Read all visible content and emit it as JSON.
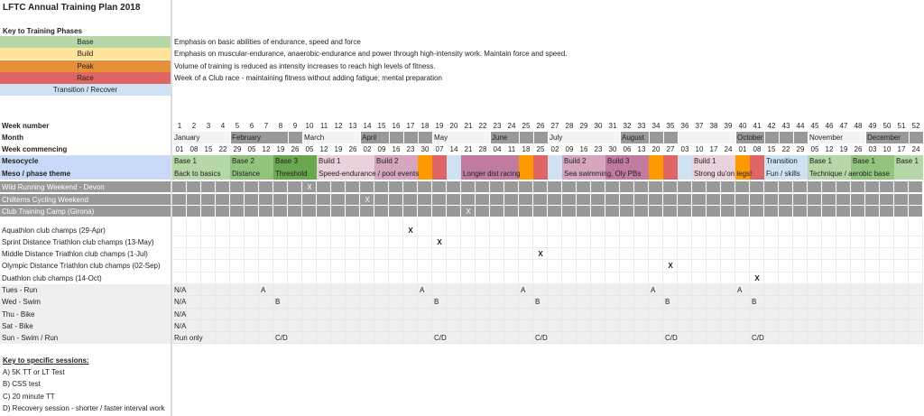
{
  "title": "LFTC Annual Training Plan 2018",
  "key_phases": {
    "heading": "Key to Training Phases",
    "items": [
      {
        "name": "Base",
        "color": "#b6d7a8",
        "description": "Emphasis on basic abilities of endurance, speed and force"
      },
      {
        "name": "Build",
        "color": "#ffe599",
        "description": "Emphasis on muscular-endurance, anaerobic-endurance and power through high-intensity work. Maintain force and speed."
      },
      {
        "name": "Peak",
        "color": "#e69138",
        "description": "Volume of training is reduced as intensity increases to reach high levels of fitness."
      },
      {
        "name": "Race",
        "color": "#e06666",
        "description": "Week of a Club race - maintaining fitness without adding fatigue; mental preparation"
      },
      {
        "name": "Transition / Recover",
        "color": "#cfe2f3",
        "description": ""
      }
    ]
  },
  "colors": {
    "base1": "#b6d7a8",
    "base2": "#93c47d",
    "base3": "#6aa84f",
    "build1": "#ead1dc",
    "build2": "#d5a6bd",
    "build3": "#c27ba0",
    "peak": "#ff9900",
    "race": "#e06666",
    "transition": "#cfe2f3",
    "month_dark": "#999999",
    "month_light": "#f3f3f3",
    "event_row": "#999999",
    "session_row": "#efefef",
    "header_row": "#c9daf8"
  },
  "labels": {
    "week_number": "Week number",
    "month": "Month",
    "week_commencing": "Week commencing",
    "mesocycle": "Mesocycle",
    "theme": "Meso / phase theme"
  },
  "week_numbers": [
    "1",
    "2",
    "3",
    "4",
    "5",
    "6",
    "7",
    "8",
    "9",
    "10",
    "11",
    "12",
    "13",
    "14",
    "15",
    "16",
    "17",
    "18",
    "19",
    "20",
    "21",
    "22",
    "23",
    "24",
    "25",
    "26",
    "27",
    "28",
    "29",
    "30",
    "31",
    "32",
    "33",
    "34",
    "35",
    "36",
    "37",
    "38",
    "39",
    "40",
    "41",
    "42",
    "43",
    "44",
    "45",
    "46",
    "47",
    "48",
    "49",
    "50",
    "51",
    "52"
  ],
  "months": [
    {
      "label": "January",
      "start": 1,
      "end": 4,
      "shade": "light"
    },
    {
      "label": "February",
      "start": 5,
      "end": 8,
      "shade": "dark"
    },
    {
      "label": "",
      "start": 9,
      "end": 9,
      "shade": "dark"
    },
    {
      "label": "March",
      "start": 10,
      "end": 13,
      "shade": "light"
    },
    {
      "label": "April",
      "start": 14,
      "end": 15,
      "shade": "dark"
    },
    {
      "label": "",
      "start": 16,
      "end": 16,
      "shade": "dark"
    },
    {
      "label": "",
      "start": 17,
      "end": 17,
      "shade": "dark"
    },
    {
      "label": "",
      "start": 18,
      "end": 18,
      "shade": "dark"
    },
    {
      "label": "May",
      "start": 19,
      "end": 22,
      "shade": "light"
    },
    {
      "label": "June",
      "start": 23,
      "end": 24,
      "shade": "dark"
    },
    {
      "label": "",
      "start": 25,
      "end": 25,
      "shade": "dark"
    },
    {
      "label": "",
      "start": 26,
      "end": 26,
      "shade": "dark"
    },
    {
      "label": "July",
      "start": 27,
      "end": 31,
      "shade": "light"
    },
    {
      "label": "August",
      "start": 32,
      "end": 33,
      "shade": "dark"
    },
    {
      "label": "",
      "start": 34,
      "end": 34,
      "shade": "dark"
    },
    {
      "label": "",
      "start": 35,
      "end": 35,
      "shade": "dark"
    },
    {
      "label": "",
      "start": 36,
      "end": 39,
      "shade": "light"
    },
    {
      "label": "October",
      "start": 40,
      "end": 41,
      "shade": "dark"
    },
    {
      "label": "",
      "start": 42,
      "end": 42,
      "shade": "dark"
    },
    {
      "label": "",
      "start": 43,
      "end": 43,
      "shade": "dark"
    },
    {
      "label": "",
      "start": 44,
      "end": 44,
      "shade": "dark"
    },
    {
      "label": "November",
      "start": 45,
      "end": 48,
      "shade": "light"
    },
    {
      "label": "December",
      "start": 49,
      "end": 51,
      "shade": "dark"
    },
    {
      "label": "",
      "start": 52,
      "end": 52,
      "shade": "dark"
    }
  ],
  "week_commencing": [
    "01",
    "08",
    "15",
    "22",
    "29",
    "05",
    "12",
    "19",
    "26",
    "05",
    "12",
    "19",
    "26",
    "02",
    "09",
    "16",
    "23",
    "30",
    "07",
    "14",
    "21",
    "28",
    "04",
    "11",
    "18",
    "25",
    "02",
    "09",
    "16",
    "23",
    "30",
    "06",
    "13",
    "20",
    "27",
    "03",
    "10",
    "17",
    "24",
    "01",
    "08",
    "15",
    "22",
    "29",
    "05",
    "12",
    "19",
    "26",
    "03",
    "10",
    "17",
    "24"
  ],
  "mesocycle": [
    {
      "label": "Base 1",
      "start": 1,
      "end": 4,
      "color": "base1"
    },
    {
      "label": "Base 2",
      "start": 5,
      "end": 7,
      "color": "base2"
    },
    {
      "label": "Base 3",
      "start": 8,
      "end": 10,
      "color": "base3"
    },
    {
      "label": "Build 1",
      "start": 11,
      "end": 14,
      "color": "build1"
    },
    {
      "label": "Build 2",
      "start": 15,
      "end": 17,
      "color": "build2"
    },
    {
      "label": "",
      "start": 18,
      "end": 18,
      "color": "peak"
    },
    {
      "label": "",
      "start": 19,
      "end": 19,
      "color": "race"
    },
    {
      "label": "",
      "start": 20,
      "end": 20,
      "color": "transition"
    },
    {
      "label": "",
      "start": 21,
      "end": 24,
      "color": "build3"
    },
    {
      "label": "",
      "start": 25,
      "end": 25,
      "color": "peak"
    },
    {
      "label": "",
      "start": 26,
      "end": 26,
      "color": "race"
    },
    {
      "label": "",
      "start": 27,
      "end": 27,
      "color": "transition"
    },
    {
      "label": "Build 2",
      "start": 28,
      "end": 30,
      "color": "build2"
    },
    {
      "label": "Build 3",
      "start": 31,
      "end": 33,
      "color": "build3"
    },
    {
      "label": "",
      "start": 34,
      "end": 34,
      "color": "peak"
    },
    {
      "label": "",
      "start": 35,
      "end": 35,
      "color": "race"
    },
    {
      "label": "",
      "start": 36,
      "end": 36,
      "color": "transition"
    },
    {
      "label": "Build 1",
      "start": 37,
      "end": 39,
      "color": "build1"
    },
    {
      "label": "",
      "start": 40,
      "end": 40,
      "color": "peak"
    },
    {
      "label": "",
      "start": 41,
      "end": 41,
      "color": "race"
    },
    {
      "label": "Transition",
      "start": 42,
      "end": 44,
      "color": "transition"
    },
    {
      "label": "Base 1",
      "start": 45,
      "end": 47,
      "color": "base1"
    },
    {
      "label": "Base 1",
      "start": 48,
      "end": 50,
      "color": "base2"
    },
    {
      "label": "Base 1",
      "start": 51,
      "end": 52,
      "color": "base1"
    }
  ],
  "themes": [
    {
      "text": "Back to basics",
      "week": 1
    },
    {
      "text": "Distance",
      "week": 5
    },
    {
      "text": "Threshold",
      "week": 8
    },
    {
      "text": "Speed-endurance / pool events",
      "week": 11
    },
    {
      "text": "Longer dist racing",
      "week": 21
    },
    {
      "text": "Sea swimming, Oly PBs",
      "week": 28
    },
    {
      "text": "Strong du'on legs!",
      "week": 37
    },
    {
      "text": "Fun / skills",
      "week": 42
    },
    {
      "text": "Technique / aerobic base",
      "week": 45
    }
  ],
  "events": [
    {
      "name": "Wild Running Weekend - Devon",
      "week": 10,
      "mark": "X"
    },
    {
      "name": "Chilterns Cycling Weekend",
      "week": 14,
      "mark": "X"
    },
    {
      "name": "Club Training Camp (Girona)",
      "week": 21,
      "mark": "X"
    }
  ],
  "races": [
    {
      "name": "Aquathlon club champs (29-Apr)",
      "week": 17,
      "mark": "X"
    },
    {
      "name": "Sprint Distance Triathlon club champs (13-May)",
      "week": 19,
      "mark": "X"
    },
    {
      "name": "Middle Distance Triathlon club champs (1-Jul)",
      "week": 26,
      "mark": "X"
    },
    {
      "name": "Olympic Distance Triathlon club champs (02-Sep)",
      "week": 35,
      "mark": "X"
    },
    {
      "name": "Duathlon club champs (14-Oct)",
      "week": 41,
      "mark": "X"
    }
  ],
  "sessions": [
    {
      "name": "Tues - Run",
      "marks": [
        {
          "week": 1,
          "text": "N/A"
        },
        {
          "week": 7,
          "text": "A"
        },
        {
          "week": 18,
          "text": "A"
        },
        {
          "week": 25,
          "text": "A"
        },
        {
          "week": 34,
          "text": "A"
        },
        {
          "week": 40,
          "text": "A"
        }
      ]
    },
    {
      "name": "Wed - Swim",
      "marks": [
        {
          "week": 1,
          "text": "N/A"
        },
        {
          "week": 8,
          "text": "B"
        },
        {
          "week": 19,
          "text": "B"
        },
        {
          "week": 26,
          "text": "B"
        },
        {
          "week": 35,
          "text": "B"
        },
        {
          "week": 41,
          "text": "B"
        }
      ]
    },
    {
      "name": "Thu - Bike",
      "marks": [
        {
          "week": 1,
          "text": "N/A"
        }
      ]
    },
    {
      "name": "Sat - Bike",
      "marks": [
        {
          "week": 1,
          "text": "N/A"
        }
      ]
    },
    {
      "name": "Sun - Swim / Run",
      "marks": [
        {
          "week": 1,
          "text": "Run only"
        },
        {
          "week": 8,
          "text": "C/D"
        },
        {
          "week": 19,
          "text": "C/D"
        },
        {
          "week": 26,
          "text": "C/D"
        },
        {
          "week": 35,
          "text": "C/D"
        },
        {
          "week": 41,
          "text": "C/D"
        }
      ]
    }
  ],
  "session_key": {
    "heading": "Key to specific sessions:",
    "items": [
      "A) 5K TT or LT Test",
      "B) CSS test",
      "C) 20 minute TT",
      "D) Recovery session - shorter / faster interval work"
    ]
  }
}
